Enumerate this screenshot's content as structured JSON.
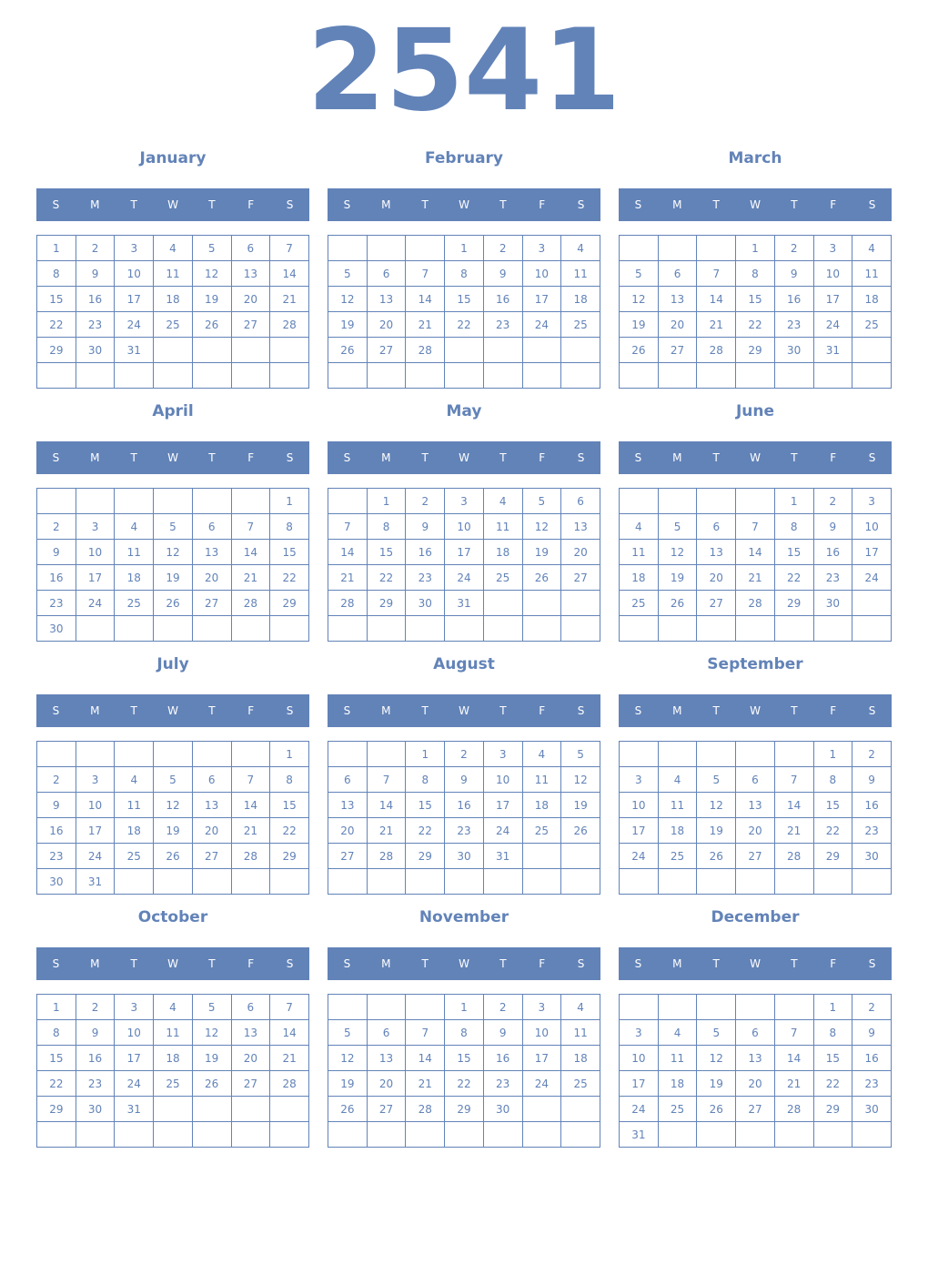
{
  "year": "2541",
  "weekday_labels": [
    "S",
    "M",
    "T",
    "W",
    "T",
    "F",
    "S"
  ],
  "colors": {
    "accent": "#6283b8",
    "header_text": "#ffffff"
  },
  "months": [
    {
      "name": "January",
      "first_weekday": 0,
      "days": 31
    },
    {
      "name": "February",
      "first_weekday": 3,
      "days": 28
    },
    {
      "name": "March",
      "first_weekday": 3,
      "days": 31
    },
    {
      "name": "April",
      "first_weekday": 6,
      "days": 30
    },
    {
      "name": "May",
      "first_weekday": 1,
      "days": 31
    },
    {
      "name": "June",
      "first_weekday": 4,
      "days": 30
    },
    {
      "name": "July",
      "first_weekday": 6,
      "days": 31
    },
    {
      "name": "August",
      "first_weekday": 2,
      "days": 31
    },
    {
      "name": "September",
      "first_weekday": 5,
      "days": 30
    },
    {
      "name": "October",
      "first_weekday": 0,
      "days": 31
    },
    {
      "name": "November",
      "first_weekday": 3,
      "days": 30
    },
    {
      "name": "December",
      "first_weekday": 5,
      "days": 31
    }
  ]
}
